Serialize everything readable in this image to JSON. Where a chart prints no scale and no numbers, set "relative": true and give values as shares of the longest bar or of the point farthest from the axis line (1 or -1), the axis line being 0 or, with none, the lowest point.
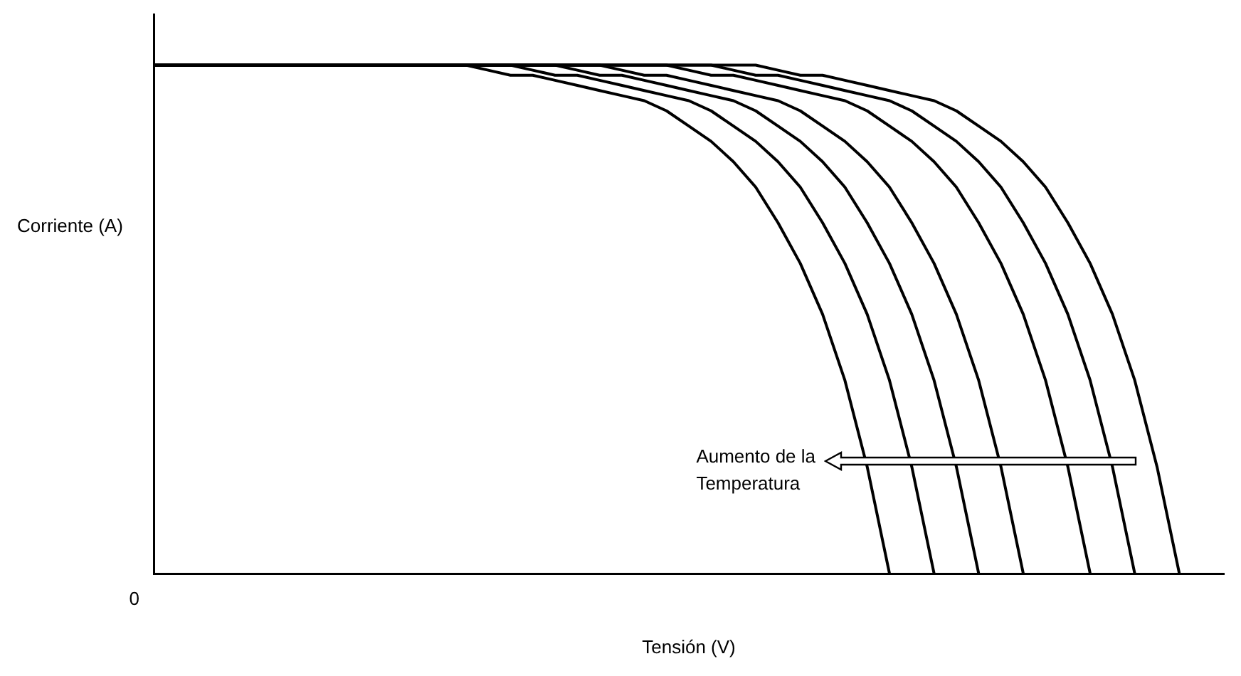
{
  "chart_data": {
    "type": "line",
    "relative": true,
    "xlabel": "Tensión (V)",
    "ylabel": "Corriente (A)",
    "annotations": [
      "0",
      "Aumento de la Temperatura"
    ],
    "legend": false,
    "grid": false,
    "marker": "none",
    "line_style": "solid",
    "categories": [
      null,
      null,
      null,
      null,
      null,
      null,
      null,
      null,
      null,
      null,
      null,
      null,
      null,
      null,
      null,
      null,
      null,
      null,
      null,
      null,
      null,
      null,
      null,
      null,
      null,
      null,
      null,
      null,
      null,
      null,
      null,
      null,
      null,
      null,
      null,
      null,
      null,
      null,
      null,
      null,
      null,
      null,
      null,
      null,
      null,
      null,
      null,
      null,
      null
    ],
    "series": [
      {
        "color": "#000000",
        "values": [
          1,
          1,
          1,
          1,
          1,
          1,
          1,
          1,
          1,
          1,
          1,
          1,
          1,
          1,
          1,
          0.99,
          0.98,
          0.98,
          0.97,
          0.96,
          0.95,
          0.94,
          0.93,
          0.91,
          0.88,
          0.85,
          0.81,
          0.76,
          0.69,
          0.61,
          0.51,
          0.38,
          0.21,
          0,
          null,
          null,
          null,
          null,
          null,
          null,
          null,
          null,
          null,
          null,
          null,
          null,
          null,
          null,
          null
        ]
      },
      {
        "color": "#000000",
        "values": [
          1,
          1,
          1,
          1,
          1,
          1,
          1,
          1,
          1,
          1,
          1,
          1,
          1,
          1,
          1,
          1,
          1,
          0.99,
          0.98,
          0.98,
          0.97,
          0.96,
          0.95,
          0.94,
          0.93,
          0.91,
          0.88,
          0.85,
          0.81,
          0.76,
          0.69,
          0.61,
          0.51,
          0.38,
          0.21,
          0,
          null,
          null,
          null,
          null,
          null,
          null,
          null,
          null,
          null,
          null,
          null,
          null,
          null
        ]
      },
      {
        "color": "#000000",
        "values": [
          1,
          1,
          1,
          1,
          1,
          1,
          1,
          1,
          1,
          1,
          1,
          1,
          1,
          1,
          1,
          1,
          1,
          1,
          1,
          0.99,
          0.98,
          0.98,
          0.97,
          0.96,
          0.95,
          0.94,
          0.93,
          0.91,
          0.88,
          0.85,
          0.81,
          0.76,
          0.69,
          0.61,
          0.51,
          0.38,
          0.21,
          0,
          null,
          null,
          null,
          null,
          null,
          null,
          null,
          null,
          null,
          null,
          null
        ]
      },
      {
        "color": "#000000",
        "values": [
          1,
          1,
          1,
          1,
          1,
          1,
          1,
          1,
          1,
          1,
          1,
          1,
          1,
          1,
          1,
          1,
          1,
          1,
          1,
          1,
          1,
          0.99,
          0.98,
          0.98,
          0.97,
          0.96,
          0.95,
          0.94,
          0.93,
          0.91,
          0.88,
          0.85,
          0.81,
          0.76,
          0.69,
          0.61,
          0.51,
          0.38,
          0.21,
          0,
          null,
          null,
          null,
          null,
          null,
          null,
          null,
          null,
          null
        ]
      },
      {
        "color": "#000000",
        "values": [
          1,
          1,
          1,
          1,
          1,
          1,
          1,
          1,
          1,
          1,
          1,
          1,
          1,
          1,
          1,
          1,
          1,
          1,
          1,
          1,
          1,
          1,
          1,
          1,
          0.99,
          0.98,
          0.98,
          0.97,
          0.96,
          0.95,
          0.94,
          0.93,
          0.91,
          0.88,
          0.85,
          0.81,
          0.76,
          0.69,
          0.61,
          0.51,
          0.38,
          0.21,
          0,
          null,
          null,
          null,
          null,
          null,
          null
        ]
      },
      {
        "color": "#000000",
        "values": [
          1,
          1,
          1,
          1,
          1,
          1,
          1,
          1,
          1,
          1,
          1,
          1,
          1,
          1,
          1,
          1,
          1,
          1,
          1,
          1,
          1,
          1,
          1,
          1,
          1,
          1,
          0.99,
          0.98,
          0.98,
          0.97,
          0.96,
          0.95,
          0.94,
          0.93,
          0.91,
          0.88,
          0.85,
          0.81,
          0.76,
          0.69,
          0.61,
          0.51,
          0.38,
          0.21,
          0,
          null,
          null,
          null,
          null
        ]
      },
      {
        "color": "#000000",
        "values": [
          1,
          1,
          1,
          1,
          1,
          1,
          1,
          1,
          1,
          1,
          1,
          1,
          1,
          1,
          1,
          1,
          1,
          1,
          1,
          1,
          1,
          1,
          1,
          1,
          1,
          1,
          1,
          1,
          0.99,
          0.98,
          0.98,
          0.97,
          0.96,
          0.95,
          0.94,
          0.93,
          0.91,
          0.88,
          0.85,
          0.81,
          0.76,
          0.69,
          0.61,
          0.51,
          0.38,
          0.21,
          0,
          null,
          null
        ]
      }
    ]
  }
}
